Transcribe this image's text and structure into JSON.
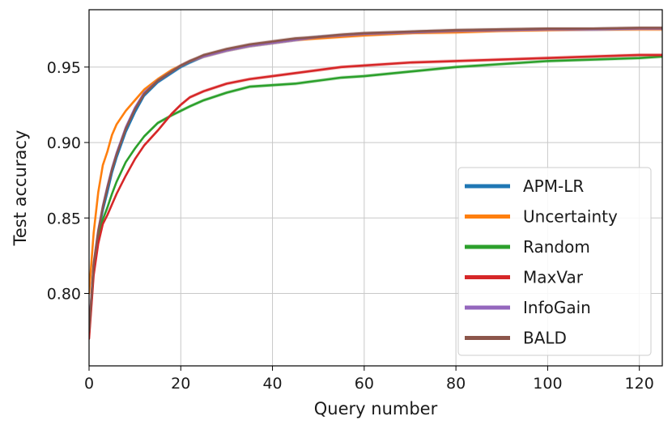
{
  "chart_data": {
    "type": "line",
    "xlabel": "Query number",
    "ylabel": "Test accuracy",
    "xlim": [
      0,
      125
    ],
    "ylim": [
      0.752,
      0.988
    ],
    "xticks": [
      0,
      20,
      40,
      60,
      80,
      100,
      120
    ],
    "yticks": [
      0.8,
      0.85,
      0.9,
      0.95
    ],
    "xtick_labels": [
      "0",
      "20",
      "40",
      "60",
      "80",
      "100",
      "120"
    ],
    "ytick_labels": [
      "0.80",
      "0.85",
      "0.90",
      "0.95"
    ],
    "grid": true,
    "legend_position": "lower-right",
    "series": [
      {
        "name": "APM-LR",
        "color": "#1f77b4",
        "x": [
          0,
          1,
          2,
          3,
          4,
          5,
          6,
          8,
          10,
          12,
          15,
          18,
          20,
          22,
          25,
          30,
          35,
          40,
          45,
          50,
          55,
          60,
          70,
          80,
          90,
          100,
          110,
          120,
          125
        ],
        "y": [
          0.775,
          0.818,
          0.84,
          0.855,
          0.867,
          0.88,
          0.89,
          0.907,
          0.92,
          0.931,
          0.94,
          0.946,
          0.95,
          0.953,
          0.957,
          0.961,
          0.964,
          0.966,
          0.968,
          0.97,
          0.971,
          0.972,
          0.973,
          0.974,
          0.9745,
          0.975,
          0.975,
          0.9755,
          0.9755
        ]
      },
      {
        "name": "Uncertainty",
        "color": "#ff7f0e",
        "x": [
          0,
          1,
          2,
          3,
          4,
          5,
          6,
          8,
          10,
          12,
          15,
          18,
          20,
          22,
          25,
          30,
          35,
          40,
          45,
          50,
          55,
          60,
          70,
          80,
          90,
          100,
          110,
          120,
          125
        ],
        "y": [
          0.8,
          0.84,
          0.867,
          0.885,
          0.894,
          0.905,
          0.912,
          0.921,
          0.928,
          0.935,
          0.942,
          0.948,
          0.951,
          0.954,
          0.957,
          0.961,
          0.964,
          0.966,
          0.968,
          0.969,
          0.97,
          0.971,
          0.9725,
          0.973,
          0.974,
          0.9745,
          0.975,
          0.975,
          0.975
        ]
      },
      {
        "name": "Random",
        "color": "#2ca02c",
        "x": [
          0,
          1,
          2,
          3,
          4,
          5,
          6,
          8,
          10,
          12,
          15,
          18,
          20,
          22,
          25,
          30,
          35,
          40,
          45,
          50,
          55,
          60,
          70,
          80,
          90,
          100,
          110,
          120,
          125
        ],
        "y": [
          0.772,
          0.815,
          0.836,
          0.849,
          0.857,
          0.866,
          0.874,
          0.887,
          0.896,
          0.904,
          0.913,
          0.918,
          0.921,
          0.924,
          0.928,
          0.933,
          0.937,
          0.938,
          0.939,
          0.941,
          0.943,
          0.944,
          0.947,
          0.95,
          0.952,
          0.954,
          0.955,
          0.956,
          0.957
        ]
      },
      {
        "name": "MaxVar",
        "color": "#d62728",
        "x": [
          0,
          1,
          2,
          3,
          4,
          5,
          6,
          8,
          10,
          12,
          15,
          18,
          20,
          22,
          25,
          30,
          35,
          40,
          45,
          50,
          55,
          60,
          70,
          80,
          90,
          100,
          110,
          120,
          125
        ],
        "y": [
          0.77,
          0.812,
          0.833,
          0.846,
          0.852,
          0.859,
          0.866,
          0.878,
          0.889,
          0.898,
          0.908,
          0.919,
          0.925,
          0.93,
          0.934,
          0.939,
          0.942,
          0.944,
          0.946,
          0.948,
          0.95,
          0.951,
          0.953,
          0.954,
          0.955,
          0.956,
          0.957,
          0.958,
          0.958
        ]
      },
      {
        "name": "InfoGain",
        "color": "#9467bd",
        "x": [
          0,
          1,
          2,
          3,
          4,
          5,
          6,
          8,
          10,
          12,
          15,
          18,
          20,
          22,
          25,
          30,
          35,
          40,
          45,
          50,
          55,
          60,
          70,
          80,
          90,
          100,
          110,
          120,
          125
        ],
        "y": [
          0.776,
          0.82,
          0.842,
          0.858,
          0.871,
          0.883,
          0.893,
          0.91,
          0.923,
          0.933,
          0.941,
          0.947,
          0.951,
          0.954,
          0.957,
          0.961,
          0.964,
          0.966,
          0.968,
          0.97,
          0.971,
          0.972,
          0.973,
          0.974,
          0.9745,
          0.975,
          0.975,
          0.9755,
          0.9755
        ]
      },
      {
        "name": "BALD",
        "color": "#8c564b",
        "x": [
          0,
          1,
          2,
          3,
          4,
          5,
          6,
          8,
          10,
          12,
          15,
          18,
          20,
          22,
          25,
          30,
          35,
          40,
          45,
          50,
          55,
          60,
          70,
          80,
          90,
          100,
          110,
          120,
          125
        ],
        "y": [
          0.775,
          0.819,
          0.841,
          0.857,
          0.87,
          0.882,
          0.892,
          0.909,
          0.922,
          0.932,
          0.941,
          0.947,
          0.951,
          0.954,
          0.958,
          0.962,
          0.965,
          0.967,
          0.969,
          0.97,
          0.9715,
          0.9725,
          0.9735,
          0.9745,
          0.975,
          0.9755,
          0.9755,
          0.976,
          0.976
        ]
      }
    ]
  }
}
